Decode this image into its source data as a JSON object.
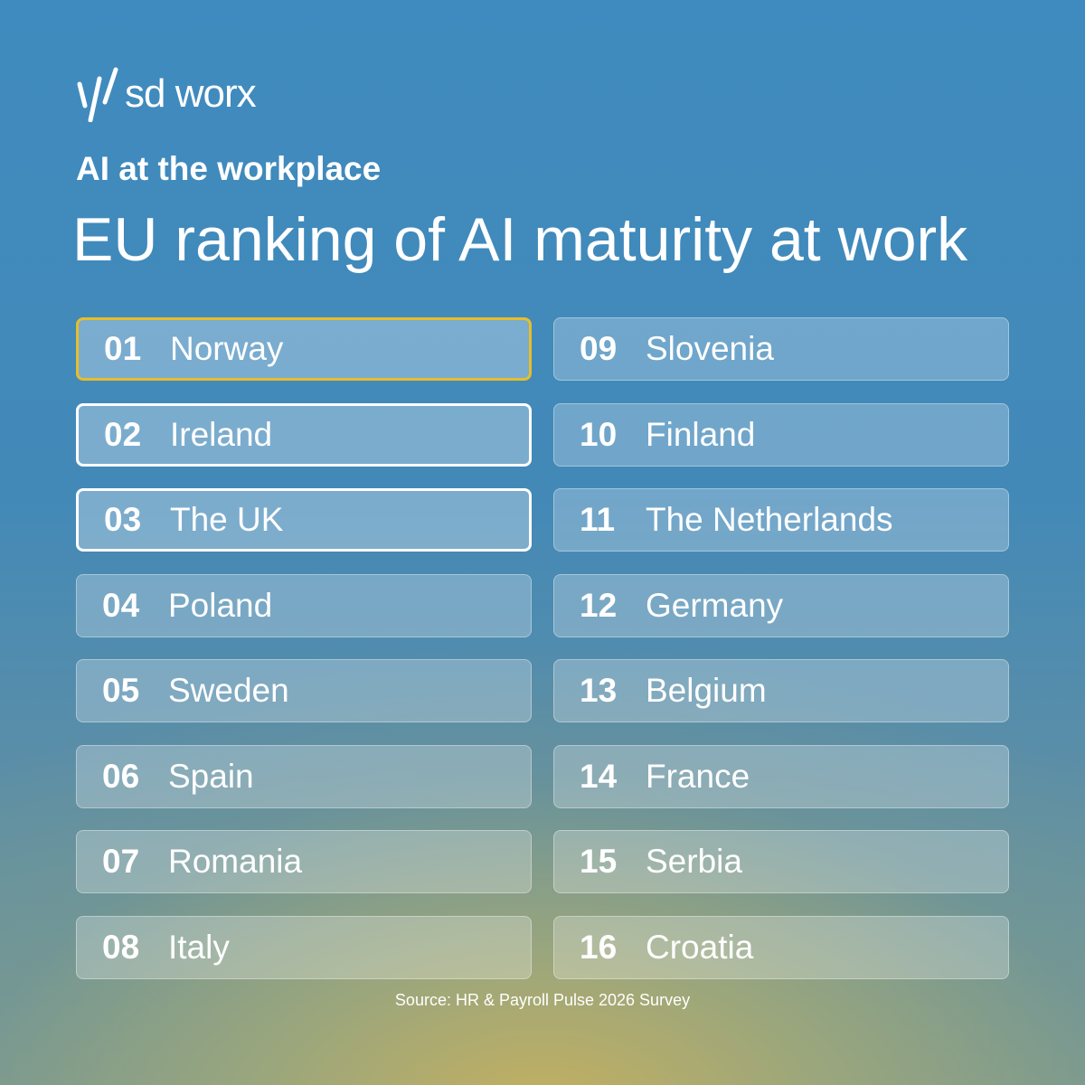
{
  "logo": "sd worx",
  "header": {
    "subtitle": "AI at the workplace",
    "title": "EU ranking of AI maturity at work"
  },
  "ranking": [
    {
      "rank": "01",
      "country": "Norway",
      "outline": "#e8bd2a"
    },
    {
      "rank": "02",
      "country": "Ireland",
      "outline": "#ffffff"
    },
    {
      "rank": "03",
      "country": "The UK",
      "outline": "#ffffff"
    },
    {
      "rank": "04",
      "country": "Poland"
    },
    {
      "rank": "05",
      "country": "Sweden"
    },
    {
      "rank": "06",
      "country": "Spain"
    },
    {
      "rank": "07",
      "country": "Romania"
    },
    {
      "rank": "08",
      "country": "Italy"
    },
    {
      "rank": "09",
      "country": "Slovenia"
    },
    {
      "rank": "10",
      "country": "Finland"
    },
    {
      "rank": "11",
      "country": "The Netherlands"
    },
    {
      "rank": "12",
      "country": "Germany"
    },
    {
      "rank": "13",
      "country": "Belgium"
    },
    {
      "rank": "14",
      "country": "France"
    },
    {
      "rank": "15",
      "country": "Serbia"
    },
    {
      "rank": "16",
      "country": "Croatia"
    }
  ],
  "source": "Source: HR & Payroll Pulse 2026 Survey"
}
